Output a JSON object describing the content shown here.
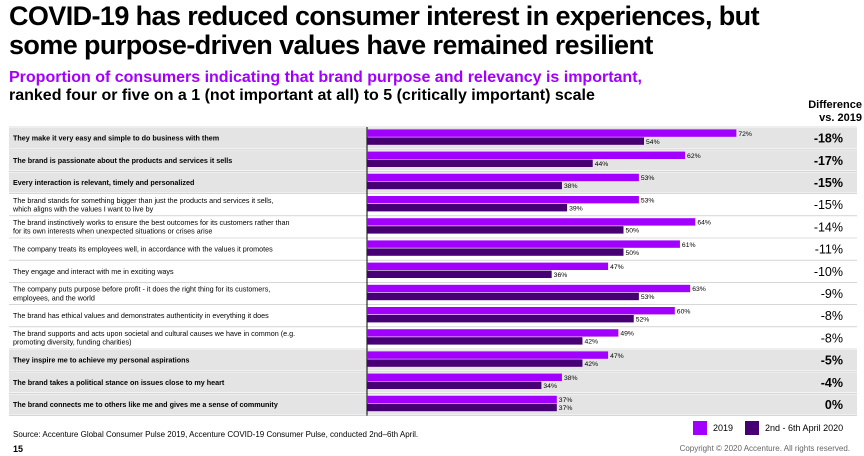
{
  "title": "COVID-19 has reduced consumer interest in experiences, but some purpose-driven values have remained resilient",
  "subtitle_purple": "Proportion of consumers indicating that brand purpose and relevancy is important,",
  "subtitle_black": "ranked four or five on a 1 (not important at all) to 5 (critically important) scale",
  "diff_header_line1": "Difference",
  "diff_header_line2": "vs. 2019",
  "source": "Source: Accenture Global Consumer Pulse 2019, Accenture COVID-19 Consumer Pulse, conducted 2nd–6th April.",
  "page_number": "15",
  "copyright": "Copyright © 2020 Accenture. All rights reserved.",
  "legend": [
    {
      "label": "2019",
      "color": "#a100ff"
    },
    {
      "label": "2nd - 6th April 2020",
      "color": "#460073"
    }
  ],
  "colors": {
    "series_2019": "#a100ff",
    "series_2020": "#460073",
    "highlight_row": "#e4e4e4"
  },
  "chart_data": {
    "type": "bar",
    "orientation": "horizontal",
    "xlim": [
      0,
      100
    ],
    "grid": false,
    "legend_position": "bottom-right",
    "categories": [
      {
        "label": "They make it very easy and simple to do business with them",
        "highlight": true,
        "diff": "-18%"
      },
      {
        "label": "The brand is passionate about the products and services it sells",
        "highlight": true,
        "diff": "-17%"
      },
      {
        "label": "Every interaction is relevant, timely and personalized",
        "highlight": true,
        "diff": "-15%"
      },
      {
        "label": "The brand stands for something bigger than just the products and services it sells, which aligns with the values I want to live by",
        "highlight": false,
        "diff": "-15%"
      },
      {
        "label": "The brand instinctively works to ensure the best outcomes for its customers rather than for its own interests when unexpected situations or crises arise",
        "highlight": false,
        "diff": "-14%"
      },
      {
        "label": "The company treats its employees well, in accordance with the values it promotes",
        "highlight": false,
        "diff": "-11%"
      },
      {
        "label": "They engage and interact with me in exciting ways",
        "highlight": false,
        "diff": "-10%"
      },
      {
        "label": "The company puts purpose before profit - it does the right thing for its customers, employees, and the world",
        "highlight": false,
        "diff": "-9%"
      },
      {
        "label": "The brand has ethical values and demonstrates authenticity in everything it does",
        "highlight": false,
        "diff": "-8%"
      },
      {
        "label": "The brand supports and acts upon societal and cultural causes we have in common (e.g. promoting diversity, funding charities)",
        "highlight": false,
        "diff": "-8%"
      },
      {
        "label": "They inspire me to achieve my personal aspirations",
        "highlight": true,
        "diff": "-5%"
      },
      {
        "label": "The brand takes a political stance on issues close to my heart",
        "highlight": true,
        "diff": "-4%"
      },
      {
        "label": "The brand connects me to others like me and gives me a sense of community",
        "highlight": true,
        "diff": "0%"
      }
    ],
    "series": [
      {
        "name": "2019",
        "values": [
          72,
          62,
          53,
          53,
          64,
          61,
          47,
          63,
          60,
          49,
          47,
          38,
          37
        ]
      },
      {
        "name": "2nd - 6th April 2020",
        "values": [
          54,
          44,
          38,
          39,
          50,
          50,
          36,
          53,
          52,
          42,
          42,
          34,
          37
        ]
      }
    ]
  }
}
